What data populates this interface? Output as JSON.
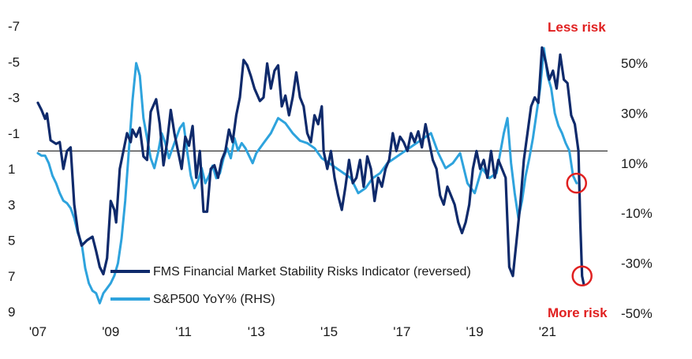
{
  "chart_data": {
    "type": "line",
    "title": "",
    "xlabel": "",
    "ylabel": "",
    "x_tick_labels": [
      "'07",
      "'09",
      "'11",
      "'13",
      "'15",
      "'17",
      "'19",
      "'21"
    ],
    "x_ticks": [
      2007,
      2009,
      2011,
      2013,
      2015,
      2017,
      2019,
      2021
    ],
    "xlim": [
      2007.0,
      2022.0
    ],
    "left_axis": {
      "reversed": true,
      "ylim": [
        -7,
        9
      ],
      "ticks": [
        -7,
        -5,
        -3,
        -1,
        1,
        3,
        5,
        7,
        9
      ],
      "tick_labels": [
        "-7",
        "-5",
        "-3",
        "-1",
        "1",
        "3",
        "5",
        "7",
        "9"
      ]
    },
    "right_axis": {
      "ylim": [
        -50,
        50
      ],
      "ticks": [
        50,
        30,
        10,
        -10,
        -30,
        -50
      ],
      "tick_labels": [
        "50%",
        "30%",
        "10%",
        "-10%",
        "-30%",
        "-50%"
      ]
    },
    "reference_line": {
      "axis": "left",
      "value": 0,
      "color": "#333333"
    },
    "legend": {
      "position": "bottom-left"
    },
    "series": [
      {
        "name": "FMS Financial Market Stability Risks Indicator (reversed)",
        "axis": "left",
        "color": "#0f2a6b",
        "points": [
          [
            2007.0,
            -2.7
          ],
          [
            2007.1,
            -2.3
          ],
          [
            2007.2,
            -1.8
          ],
          [
            2007.25,
            -2.1
          ],
          [
            2007.35,
            -0.6
          ],
          [
            2007.5,
            -0.4
          ],
          [
            2007.6,
            -0.5
          ],
          [
            2007.7,
            1.0
          ],
          [
            2007.8,
            0.0
          ],
          [
            2007.9,
            -0.2
          ],
          [
            2008.0,
            3.0
          ],
          [
            2008.1,
            4.5
          ],
          [
            2008.2,
            5.3
          ],
          [
            2008.35,
            5.0
          ],
          [
            2008.5,
            4.8
          ],
          [
            2008.6,
            5.6
          ],
          [
            2008.7,
            6.5
          ],
          [
            2008.8,
            6.9
          ],
          [
            2008.9,
            6.0
          ],
          [
            2009.0,
            2.8
          ],
          [
            2009.1,
            3.3
          ],
          [
            2009.15,
            4.0
          ],
          [
            2009.25,
            1.0
          ],
          [
            2009.35,
            0.0
          ],
          [
            2009.45,
            -1.0
          ],
          [
            2009.55,
            -0.5
          ],
          [
            2009.6,
            -1.2
          ],
          [
            2009.7,
            -0.8
          ],
          [
            2009.8,
            -1.3
          ],
          [
            2009.9,
            0.3
          ],
          [
            2010.0,
            0.5
          ],
          [
            2010.1,
            -2.2
          ],
          [
            2010.25,
            -2.9
          ],
          [
            2010.35,
            -1.5
          ],
          [
            2010.45,
            0.8
          ],
          [
            2010.55,
            -0.5
          ],
          [
            2010.65,
            -2.3
          ],
          [
            2010.75,
            -1.0
          ],
          [
            2010.85,
            0.0
          ],
          [
            2010.95,
            1.0
          ],
          [
            2011.05,
            -0.8
          ],
          [
            2011.15,
            -0.3
          ],
          [
            2011.25,
            -1.4
          ],
          [
            2011.35,
            1.5
          ],
          [
            2011.45,
            0.0
          ],
          [
            2011.55,
            3.4
          ],
          [
            2011.65,
            3.4
          ],
          [
            2011.75,
            1.0
          ],
          [
            2011.85,
            0.8
          ],
          [
            2011.95,
            1.5
          ],
          [
            2012.05,
            0.5
          ],
          [
            2012.15,
            0.0
          ],
          [
            2012.25,
            -1.2
          ],
          [
            2012.35,
            -0.5
          ],
          [
            2012.45,
            -2.0
          ],
          [
            2012.55,
            -3.0
          ],
          [
            2012.65,
            -5.1
          ],
          [
            2012.75,
            -4.8
          ],
          [
            2012.85,
            -4.2
          ],
          [
            2012.95,
            -3.5
          ],
          [
            2013.1,
            -2.8
          ],
          [
            2013.2,
            -3.0
          ],
          [
            2013.3,
            -4.9
          ],
          [
            2013.4,
            -3.5
          ],
          [
            2013.5,
            -4.5
          ],
          [
            2013.6,
            -4.8
          ],
          [
            2013.7,
            -2.5
          ],
          [
            2013.8,
            -3.1
          ],
          [
            2013.9,
            -2.0
          ],
          [
            2014.0,
            -3.0
          ],
          [
            2014.1,
            -4.4
          ],
          [
            2014.2,
            -3.0
          ],
          [
            2014.3,
            -2.5
          ],
          [
            2014.4,
            -1.0
          ],
          [
            2014.5,
            -0.5
          ],
          [
            2014.6,
            -2.0
          ],
          [
            2014.7,
            -1.5
          ],
          [
            2014.8,
            -2.5
          ],
          [
            2014.85,
            0.0
          ],
          [
            2014.95,
            1.0
          ],
          [
            2015.05,
            0.0
          ],
          [
            2015.15,
            1.5
          ],
          [
            2015.25,
            2.5
          ],
          [
            2015.35,
            3.3
          ],
          [
            2015.45,
            2.0
          ],
          [
            2015.55,
            0.5
          ],
          [
            2015.65,
            1.8
          ],
          [
            2015.75,
            1.5
          ],
          [
            2015.85,
            0.5
          ],
          [
            2015.95,
            2.0
          ],
          [
            2016.05,
            0.3
          ],
          [
            2016.15,
            1.0
          ],
          [
            2016.25,
            2.8
          ],
          [
            2016.35,
            1.5
          ],
          [
            2016.45,
            2.0
          ],
          [
            2016.55,
            1.0
          ],
          [
            2016.65,
            0.5
          ],
          [
            2016.75,
            -1.0
          ],
          [
            2016.85,
            0.0
          ],
          [
            2016.95,
            -0.8
          ],
          [
            2017.05,
            -0.5
          ],
          [
            2017.15,
            0.0
          ],
          [
            2017.25,
            -1.0
          ],
          [
            2017.35,
            -0.5
          ],
          [
            2017.45,
            -1.1
          ],
          [
            2017.55,
            -0.2
          ],
          [
            2017.65,
            -1.5
          ],
          [
            2017.75,
            -0.5
          ],
          [
            2017.85,
            0.5
          ],
          [
            2017.95,
            1.0
          ],
          [
            2018.05,
            2.5
          ],
          [
            2018.15,
            3.0
          ],
          [
            2018.25,
            2.0
          ],
          [
            2018.35,
            2.5
          ],
          [
            2018.45,
            3.0
          ],
          [
            2018.55,
            4.0
          ],
          [
            2018.65,
            4.6
          ],
          [
            2018.75,
            4.0
          ],
          [
            2018.85,
            3.0
          ],
          [
            2018.95,
            1.0
          ],
          [
            2019.05,
            0.0
          ],
          [
            2019.15,
            1.0
          ],
          [
            2019.25,
            0.5
          ],
          [
            2019.35,
            1.5
          ],
          [
            2019.45,
            0.0
          ],
          [
            2019.55,
            1.5
          ],
          [
            2019.65,
            0.5
          ],
          [
            2019.75,
            1.0
          ],
          [
            2019.85,
            1.5
          ],
          [
            2019.95,
            6.5
          ],
          [
            2020.05,
            7.0
          ],
          [
            2020.15,
            5.0
          ],
          [
            2020.25,
            3.0
          ],
          [
            2020.35,
            0.5
          ],
          [
            2020.45,
            -1.0
          ],
          [
            2020.55,
            -2.5
          ],
          [
            2020.65,
            -3.0
          ],
          [
            2020.75,
            -2.7
          ],
          [
            2020.85,
            -5.8
          ],
          [
            2020.95,
            -5.0
          ],
          [
            2021.05,
            -4.0
          ],
          [
            2021.15,
            -4.5
          ],
          [
            2021.25,
            -3.5
          ],
          [
            2021.35,
            -5.4
          ],
          [
            2021.45,
            -4.0
          ],
          [
            2021.55,
            -3.8
          ],
          [
            2021.65,
            -2.0
          ],
          [
            2021.75,
            -1.5
          ],
          [
            2021.85,
            0.0
          ],
          [
            2021.9,
            4.0
          ],
          [
            2021.95,
            7.0
          ],
          [
            2022.0,
            7.5
          ]
        ]
      },
      {
        "name": "S&P500 YoY% (RHS)",
        "axis": "right",
        "color": "#2ea3dd",
        "points": [
          [
            2007.0,
            14
          ],
          [
            2007.1,
            13
          ],
          [
            2007.2,
            13
          ],
          [
            2007.3,
            10
          ],
          [
            2007.4,
            5
          ],
          [
            2007.5,
            2
          ],
          [
            2007.6,
            -2
          ],
          [
            2007.7,
            -5
          ],
          [
            2007.8,
            -6
          ],
          [
            2007.9,
            -8
          ],
          [
            2008.0,
            -12
          ],
          [
            2008.1,
            -18
          ],
          [
            2008.2,
            -22
          ],
          [
            2008.3,
            -32
          ],
          [
            2008.4,
            -38
          ],
          [
            2008.5,
            -41
          ],
          [
            2008.6,
            -42
          ],
          [
            2008.7,
            -46
          ],
          [
            2008.8,
            -42
          ],
          [
            2008.9,
            -40
          ],
          [
            2009.0,
            -38
          ],
          [
            2009.1,
            -35
          ],
          [
            2009.2,
            -30
          ],
          [
            2009.3,
            -20
          ],
          [
            2009.4,
            -5
          ],
          [
            2009.5,
            15
          ],
          [
            2009.6,
            35
          ],
          [
            2009.7,
            50
          ],
          [
            2009.8,
            45
          ],
          [
            2009.9,
            28
          ],
          [
            2010.0,
            20
          ],
          [
            2010.1,
            12
          ],
          [
            2010.2,
            8
          ],
          [
            2010.3,
            14
          ],
          [
            2010.4,
            22
          ],
          [
            2010.5,
            18
          ],
          [
            2010.6,
            12
          ],
          [
            2010.7,
            16
          ],
          [
            2010.8,
            20
          ],
          [
            2010.9,
            24
          ],
          [
            2011.0,
            26
          ],
          [
            2011.1,
            15
          ],
          [
            2011.2,
            5
          ],
          [
            2011.3,
            0
          ],
          [
            2011.4,
            3
          ],
          [
            2011.5,
            8
          ],
          [
            2011.6,
            2
          ],
          [
            2011.7,
            5
          ],
          [
            2011.8,
            9
          ],
          [
            2011.9,
            4
          ],
          [
            2012.0,
            6
          ],
          [
            2012.1,
            12
          ],
          [
            2012.2,
            16
          ],
          [
            2012.3,
            12
          ],
          [
            2012.4,
            20
          ],
          [
            2012.5,
            15
          ],
          [
            2012.6,
            18
          ],
          [
            2012.7,
            16
          ],
          [
            2012.8,
            13
          ],
          [
            2012.9,
            10
          ],
          [
            2013.0,
            14
          ],
          [
            2013.2,
            18
          ],
          [
            2013.4,
            22
          ],
          [
            2013.6,
            28
          ],
          [
            2013.8,
            26
          ],
          [
            2014.0,
            22
          ],
          [
            2014.2,
            19
          ],
          [
            2014.4,
            18
          ],
          [
            2014.6,
            16
          ],
          [
            2014.8,
            12
          ],
          [
            2015.0,
            10
          ],
          [
            2015.2,
            8
          ],
          [
            2015.4,
            6
          ],
          [
            2015.6,
            4
          ],
          [
            2015.8,
            -2
          ],
          [
            2016.0,
            0
          ],
          [
            2016.2,
            4
          ],
          [
            2016.4,
            6
          ],
          [
            2016.6,
            10
          ],
          [
            2016.8,
            12
          ],
          [
            2017.0,
            14
          ],
          [
            2017.2,
            16
          ],
          [
            2017.4,
            18
          ],
          [
            2017.6,
            20
          ],
          [
            2017.8,
            22
          ],
          [
            2018.0,
            14
          ],
          [
            2018.2,
            8
          ],
          [
            2018.4,
            10
          ],
          [
            2018.6,
            14
          ],
          [
            2018.8,
            2
          ],
          [
            2019.0,
            -2
          ],
          [
            2019.2,
            8
          ],
          [
            2019.4,
            4
          ],
          [
            2019.6,
            6
          ],
          [
            2019.8,
            22
          ],
          [
            2019.9,
            28
          ],
          [
            2020.0,
            10
          ],
          [
            2020.1,
            -2
          ],
          [
            2020.2,
            -12
          ],
          [
            2020.3,
            -5
          ],
          [
            2020.4,
            5
          ],
          [
            2020.5,
            12
          ],
          [
            2020.6,
            20
          ],
          [
            2020.7,
            30
          ],
          [
            2020.8,
            40
          ],
          [
            2020.9,
            56
          ],
          [
            2021.0,
            45
          ],
          [
            2021.1,
            40
          ],
          [
            2021.2,
            30
          ],
          [
            2021.3,
            25
          ],
          [
            2021.4,
            22
          ],
          [
            2021.5,
            18
          ],
          [
            2021.6,
            15
          ],
          [
            2021.7,
            5
          ],
          [
            2021.8,
            2
          ]
        ]
      }
    ],
    "annotations": [
      {
        "text": "Less risk",
        "color": "#e02020"
      },
      {
        "text": "More risk",
        "color": "#e02020"
      }
    ],
    "highlight_circles": [
      {
        "axis": "right",
        "x": 2021.8,
        "value": 2,
        "color": "#e02020"
      },
      {
        "axis": "left",
        "x": 2021.95,
        "value": 7.0,
        "color": "#e02020"
      }
    ]
  }
}
